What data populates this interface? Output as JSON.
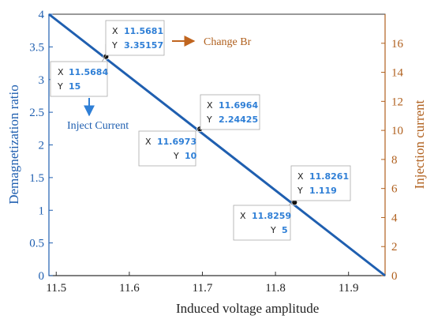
{
  "chart_data": {
    "type": "line",
    "xlabel": "Induced voltage amplitude",
    "ylabel_left": "Demagnetization ratio",
    "ylabel_right": "Injection current",
    "xlim": [
      11.49,
      11.95
    ],
    "ylim_left": [
      0,
      4
    ],
    "ylim_right": [
      0,
      18
    ],
    "x_ticks": [
      "11.5",
      "11.6",
      "11.7",
      "11.8",
      "11.9"
    ],
    "y_ticks_left": [
      "0",
      "0.5",
      "1",
      "1.5",
      "2",
      "2.5",
      "3",
      "3.5",
      "4"
    ],
    "y_ticks_right": [
      "0",
      "2",
      "4",
      "6",
      "8",
      "10",
      "12",
      "14",
      "16"
    ],
    "grid": false,
    "series": [
      {
        "x": [
          11.49,
          11.95
        ],
        "y": [
          4.0,
          0.0
        ],
        "axis": "left",
        "color": "#1f5fb0"
      }
    ],
    "markers": [
      {
        "x": 11.5681,
        "y": 3.35157
      },
      {
        "x": 11.6964,
        "y": 2.24425
      },
      {
        "x": 11.8261,
        "y": 1.119
      }
    ],
    "datatips": [
      {
        "x_label": "X",
        "x_value": "11.5681",
        "y_label": "Y",
        "y_value": "3.35157"
      },
      {
        "x_label": "X",
        "x_value": "11.5684",
        "y_label": "Y",
        "y_value": "15"
      },
      {
        "x_label": "X",
        "x_value": "11.6964",
        "y_label": "Y",
        "y_value": "2.24425"
      },
      {
        "x_label": "X",
        "x_value": "11.6973",
        "y_label": "Y",
        "y_value": "10"
      },
      {
        "x_label": "X",
        "x_value": "11.8261",
        "y_label": "Y",
        "y_value": "1.119"
      },
      {
        "x_label": "X",
        "x_value": "11.8259",
        "y_label": "Y",
        "y_value": "5"
      }
    ],
    "annotations": [
      {
        "text": "Change Br",
        "color": "#b0601e"
      },
      {
        "text": "Inject Current",
        "color": "#1f5fb0"
      }
    ],
    "colors": {
      "left_axis": "#1f5fb0",
      "right_axis": "#b0601e",
      "line": "#1f5fb0",
      "tip_value": "#2f7fd6"
    }
  }
}
